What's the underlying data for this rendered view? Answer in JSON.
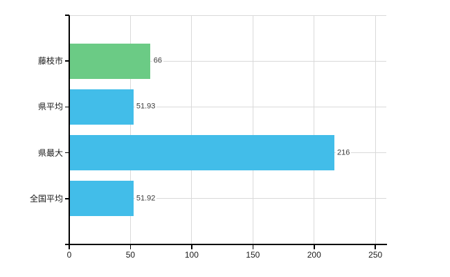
{
  "chart_data": {
    "type": "bar",
    "orientation": "horizontal",
    "title": "",
    "categories": [
      "藤枝市",
      "県平均",
      "県最大",
      "全国平均"
    ],
    "values": [
      66,
      51.93,
      216,
      51.92
    ],
    "value_labels": [
      "66",
      "51.93",
      "216",
      "51.92"
    ],
    "series": [
      {
        "name": "値",
        "values": [
          66,
          51.93,
          216,
          51.92
        ]
      }
    ],
    "bar_colors": [
      "#6bcb85",
      "#42bde9",
      "#42bde9",
      "#42bde9"
    ],
    "x_ticks": [
      0,
      50,
      100,
      150,
      200,
      250
    ],
    "x_tick_labels": [
      "0",
      "50",
      "100",
      "150",
      "200",
      "250"
    ],
    "xlim": [
      0,
      259.5
    ],
    "grid": true,
    "legend": false,
    "colors": {
      "axis": "#000000",
      "grid": "#d9d9d9",
      "text": "#1a1a1a",
      "value_text": "#3a3a3a",
      "background": "#ffffff"
    }
  }
}
